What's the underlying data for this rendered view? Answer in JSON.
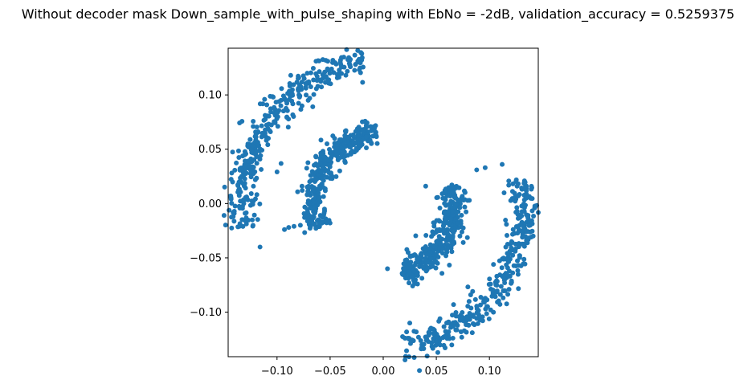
{
  "chart_data": {
    "type": "scatter",
    "title": "Without decoder mask Down_sample_with_pulse_shaping with EbNo = -2dB, validation_accuracy = 0.5259375",
    "xlabel": "",
    "ylabel": "",
    "xlim": [
      -0.146,
      0.146
    ],
    "ylim": [
      -0.141,
      0.143
    ],
    "xticks": [
      -0.1,
      -0.05,
      0.0,
      0.05,
      0.1
    ],
    "xtick_labels": [
      "−0.10",
      "−0.05",
      "0.00",
      "0.05",
      "0.10"
    ],
    "yticks": [
      -0.1,
      -0.05,
      0.0,
      0.05,
      0.1
    ],
    "ytick_labels": [
      "−0.10",
      "−0.05",
      "0.00",
      "0.05",
      "0.10"
    ],
    "grid": false,
    "marker_color": "#1f77b4",
    "clusters": [
      {
        "center": [
          0,
          0
        ],
        "radius": 0.133,
        "thickness": 0.013,
        "angle_start": 98,
        "angle_end": 190,
        "count": 360
      },
      {
        "center": [
          0,
          0
        ],
        "radius": 0.066,
        "thickness": 0.011,
        "angle_start": 95,
        "angle_end": 200,
        "count": 360
      },
      {
        "center": [
          0,
          0
        ],
        "radius": 0.066,
        "thickness": 0.011,
        "angle_start": 285,
        "angle_end": 375,
        "count": 360
      },
      {
        "center": [
          0,
          0
        ],
        "radius": 0.133,
        "thickness": 0.013,
        "angle_start": 278,
        "angle_end": 370,
        "count": 360
      }
    ],
    "points": [
      [
        -0.093,
        -0.024
      ],
      [
        -0.089,
        -0.022
      ],
      [
        -0.084,
        -0.021
      ],
      [
        -0.078,
        -0.02
      ],
      [
        0.025,
        -0.11
      ],
      [
        0.088,
        0.031
      ],
      [
        0.096,
        0.033
      ],
      [
        0.112,
        0.036
      ],
      [
        -0.017,
        0.075
      ],
      [
        0.04,
        0.016
      ],
      [
        -0.116,
        -0.04
      ],
      [
        0.004,
        -0.06
      ]
    ]
  }
}
